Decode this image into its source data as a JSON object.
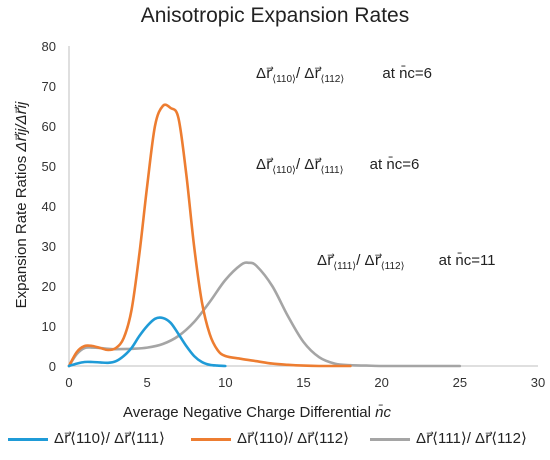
{
  "chart_data": {
    "type": "line",
    "title": "Anisotropic Expansion Rates",
    "xlabel": "Average Negative Charge Differential",
    "xlabel_symbol": "n̄c",
    "ylabel": "Expansion Rate Ratios",
    "ylabel_symbol": "Δr⃗ij/Δr⃗ij",
    "xlim": [
      0,
      30
    ],
    "ylim": [
      0,
      80
    ],
    "xticks": [
      "0",
      "5",
      "10",
      "15",
      "20",
      "25",
      "30"
    ],
    "yticks": [
      "0",
      "10",
      "20",
      "30",
      "40",
      "50",
      "60",
      "70",
      "80"
    ],
    "grid": false,
    "legend_position": "bottom",
    "series": [
      {
        "name": "Δr⃗⟨110⟩/ Δr⃗⟨111⟩",
        "color": "#1f9bd7",
        "x": [
          0,
          0.5,
          1,
          1.5,
          2,
          2.5,
          3,
          3.5,
          4,
          4.5,
          5,
          5.5,
          6,
          6.5,
          7,
          7.5,
          8,
          8.5,
          9,
          9.5,
          10
        ],
        "y": [
          0,
          0.6,
          1.0,
          1.0,
          0.9,
          0.8,
          1.2,
          2.5,
          4.5,
          7.5,
          10.0,
          11.8,
          12.0,
          10.8,
          8.0,
          5.0,
          2.5,
          1.0,
          0.3,
          0.1,
          0
        ]
      },
      {
        "name": "Δr⃗⟨110⟩/ Δr⃗⟨112⟩",
        "color": "#ed7d31",
        "x": [
          0,
          0.5,
          1,
          1.5,
          2,
          2.5,
          3,
          3.5,
          4,
          4.5,
          5,
          5.5,
          6,
          6.5,
          7,
          7.5,
          8,
          8.5,
          9,
          9.5,
          10,
          11,
          12,
          13,
          14,
          15,
          16,
          17,
          18
        ],
        "y": [
          0,
          3.5,
          5.0,
          5.0,
          4.5,
          4.0,
          4.5,
          7.0,
          14.0,
          28.0,
          45.0,
          60.0,
          65.0,
          64.5,
          62.0,
          48.0,
          30.0,
          16.0,
          8.0,
          4.0,
          2.5,
          1.8,
          1.2,
          0.6,
          0.3,
          0.1,
          0,
          0,
          0
        ]
      },
      {
        "name": "Δr⃗⟨111⟩/ Δr⃗⟨112⟩",
        "color": "#a5a5a5",
        "x": [
          0,
          0.5,
          1,
          1.5,
          2,
          2.5,
          3,
          4,
          5,
          6,
          7,
          8,
          9,
          10,
          11,
          11.5,
          12,
          13,
          14,
          15,
          16,
          17,
          18,
          19,
          20,
          21,
          22,
          23,
          24,
          25
        ],
        "y": [
          0,
          3.0,
          4.5,
          4.6,
          4.5,
          4.3,
          4.2,
          4.3,
          4.6,
          5.5,
          7.5,
          11.0,
          16.0,
          21.5,
          25.3,
          25.8,
          25.0,
          20.0,
          12.5,
          6.0,
          2.2,
          0.6,
          0.2,
          0.1,
          0,
          0,
          0,
          0,
          0,
          0
        ]
      }
    ],
    "annotations": [
      {
        "num_vec": "r⃗",
        "num_sub": "⟨110⟩",
        "den_vec": "r⃗",
        "den_sub": "⟨112⟩",
        "note": "at n̄c=6"
      },
      {
        "num_vec": "r⃗",
        "num_sub": "⟨110⟩",
        "den_vec": "r⃗",
        "den_sub": "⟨111⟩",
        "note": "at n̄c=6"
      },
      {
        "num_vec": "r⃗",
        "num_sub": "⟨111⟩",
        "den_vec": "r⃗",
        "den_sub": "⟨112⟩",
        "note": "at n̄c=11"
      }
    ]
  }
}
